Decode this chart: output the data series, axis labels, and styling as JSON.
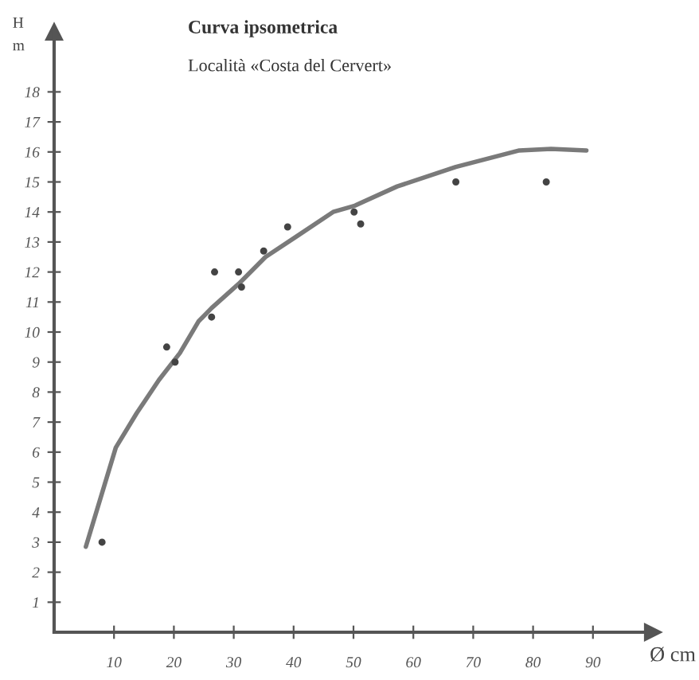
{
  "chart_data": {
    "type": "scatter",
    "title": "Curva ipsometrica",
    "subtitle": "Località «Costa del Cervert»",
    "xlabel": "Ø cm",
    "ylabel": "H\nm",
    "xlim": [
      0,
      100
    ],
    "ylim": [
      0,
      20
    ],
    "xticks": [
      10,
      20,
      30,
      40,
      50,
      60,
      70,
      80,
      90
    ],
    "yticks": [
      1,
      2,
      3,
      4,
      5,
      6,
      7,
      8,
      9,
      10,
      11,
      12,
      13,
      14,
      15,
      16,
      17,
      18
    ],
    "grid": false,
    "legend": false,
    "series": [
      {
        "color": "#444444",
        "marker": "circle",
        "x": [
          8,
          18.8,
          20.2,
          26.3,
          26.8,
          30.8,
          31.3,
          35,
          39,
          50.1,
          51.2,
          67.1,
          82.2
        ],
        "values": [
          3,
          9.5,
          9,
          10.5,
          12,
          12,
          11.5,
          12.7,
          13.5,
          14,
          13.6,
          15,
          15
        ]
      },
      {
        "type": "line",
        "color": "#7a7a7a",
        "marker": "none",
        "line_style": "solid",
        "x": [
          5.3,
          10.3,
          13.8,
          17.5,
          21,
          24.1,
          26.3,
          30.8,
          35.3,
          40.6,
          46.6,
          50.1,
          57.3,
          67.1,
          77.7,
          83,
          88.9
        ],
        "values": [
          2.85,
          6.15,
          7.3,
          8.4,
          9.3,
          10.35,
          10.8,
          11.6,
          12.5,
          13.2,
          14,
          14.2,
          14.85,
          15.5,
          16.05,
          16.1,
          16.05
        ]
      }
    ]
  }
}
